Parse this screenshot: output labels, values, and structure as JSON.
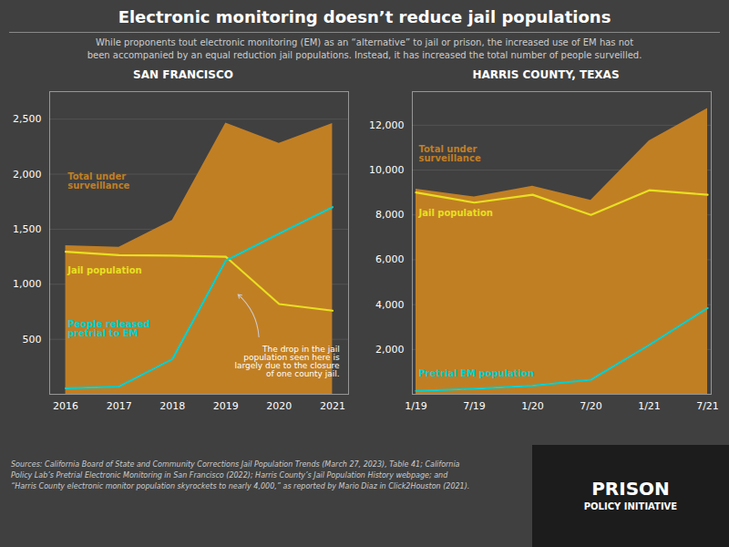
{
  "title": "Electronic monitoring doesn’t reduce jail populations",
  "subtitle": "While proponents tout electronic monitoring (EM) as an “alternative” to jail or prison, the increased use of EM has not\nbeen accompanied by an equal reduction jail populations. Instead, it has increased the total number of people surveilled.",
  "sources": [
    "Sources: California Board of State and Community Corrections Jail Population Trends (March 27, 2023), Table 41; California",
    "Policy Lab’s Pretrial Electronic Monitoring in San Francisco (2022); Harris County’s Jail Population History webpage; and",
    "“Harris County electronic monitor population skyrockets to nearly 4,000,” as reported by Mario Diaz in Click2Houston (2021)."
  ],
  "annotations": [
    "PRISON",
    "POLICY INITIATIVE"
  ],
  "chart_data": [
    {
      "type": "line",
      "title": "SAN FRANCISCO",
      "x": [
        2016,
        2017,
        2018,
        2019,
        2020,
        2021
      ],
      "xlim": [
        2015.7,
        2021.3
      ],
      "xticks": [
        2016,
        2017,
        2018,
        2019,
        2020,
        2021
      ],
      "ylim": [
        0,
        2750
      ],
      "yticks": [
        500,
        {
          "value": 1000,
          "label": "1,000"
        },
        {
          "value": 1500,
          "label": "1,500"
        },
        {
          "value": 2000,
          "label": "2,000"
        },
        {
          "value": 2500,
          "label": "2,500"
        }
      ],
      "grid": true,
      "series": [
        {
          "name": "Total under\nsurveillance",
          "type": "area",
          "color": "#c17f24",
          "values": [
            1350,
            1335,
            1580,
            2465,
            2280,
            2460
          ]
        },
        {
          "name": "Jail population",
          "type": "line",
          "color": "#e8e020",
          "values": [
            1295,
            1265,
            1260,
            1250,
            820,
            760
          ]
        },
        {
          "name": "People released\npretrial to EM",
          "type": "line",
          "color": "#00d0d0",
          "values": [
            55,
            70,
            320,
            1215,
            1460,
            1700
          ]
        }
      ],
      "annotations": [
        "The drop in the jail\npopulation seen here is\nlargely due to the closure\nof one county jail."
      ]
    },
    {
      "type": "line",
      "title": "HARRIS COUNTY, TEXAS",
      "categories": [
        "1/19",
        "7/19",
        "1/20",
        "7/20",
        "1/21",
        "7/21"
      ],
      "ylim": [
        0,
        13500
      ],
      "yticks": [
        {
          "value": 2000,
          "label": "2,000"
        },
        {
          "value": 4000,
          "label": "4,000"
        },
        {
          "value": 6000,
          "label": "6,000"
        },
        {
          "value": 8000,
          "label": "8,000"
        },
        {
          "value": 10000,
          "label": "10,000"
        },
        {
          "value": 12000,
          "label": "12,000"
        }
      ],
      "grid": true,
      "series": [
        {
          "name": "Total under\nsurveillance",
          "type": "area",
          "color": "#c17f24",
          "values": [
            9150,
            8800,
            9280,
            8650,
            11300,
            12750
          ]
        },
        {
          "name": "Jail population",
          "type": "line",
          "color": "#e8e020",
          "values": [
            9000,
            8550,
            8900,
            8000,
            9100,
            8900
          ]
        },
        {
          "name": "Pretrial EM population",
          "type": "line",
          "color": "#00d0d0",
          "values": [
            150,
            250,
            380,
            650,
            2200,
            3850
          ]
        }
      ]
    }
  ]
}
